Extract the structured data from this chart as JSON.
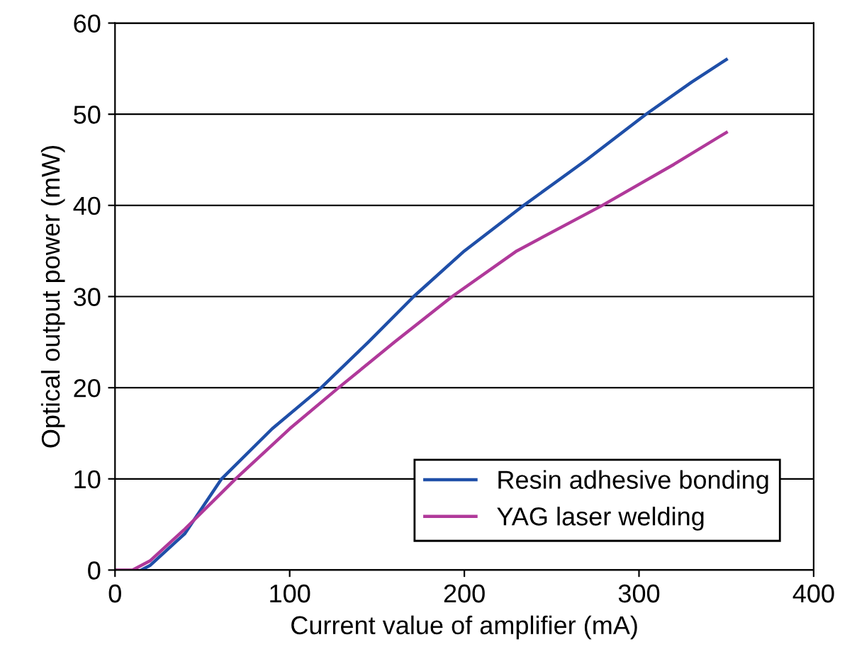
{
  "chart_data": {
    "type": "line",
    "xlabel": "Current value of amplifier (mA)",
    "ylabel": "Optical output power (mW)",
    "xlim": [
      0,
      400
    ],
    "xticks": [
      0,
      100,
      200,
      300,
      400
    ],
    "ylim": [
      0,
      60
    ],
    "yticks": [
      0,
      10,
      20,
      30,
      40,
      50,
      60
    ],
    "grid": "y",
    "legend": "bottom right",
    "series": [
      {
        "name": "Resin adhesive bonding",
        "color": "#1f4fa8",
        "x": [
          15,
          20,
          40,
          61,
          90,
          118,
          145,
          171,
          200,
          234,
          270,
          304,
          330,
          350
        ],
        "values": [
          0,
          0.5,
          4,
          10,
          15.5,
          20,
          25,
          30,
          35,
          40,
          45,
          50,
          53.5,
          56
        ]
      },
      {
        "name": "YAG laser welding",
        "color": "#b0399a",
        "x": [
          0,
          10,
          20,
          40,
          69,
          100,
          128,
          160,
          193,
          230,
          279,
          320,
          350
        ],
        "values": [
          0,
          0,
          1,
          4.5,
          10,
          15.5,
          20,
          25,
          30,
          35,
          40,
          44.5,
          48
        ]
      }
    ]
  }
}
